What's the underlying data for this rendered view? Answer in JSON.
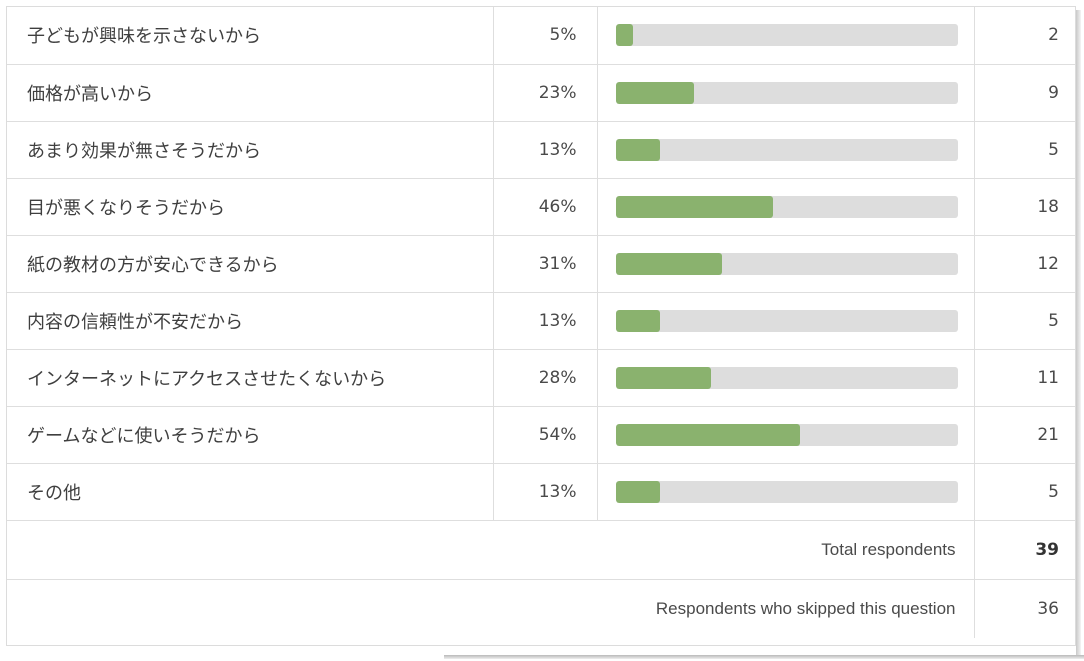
{
  "chart_data": {
    "type": "bar",
    "orientation": "horizontal",
    "categories": [
      "子どもが興味を示さないから",
      "価格が高いから",
      "あまり効果が無さそうだから",
      "目が悪くなりそうだから",
      "紙の教材の方が安心できるから",
      "内容の信頼性が不安だから",
      "インターネットにアクセスさせたくないから",
      "ゲームなどに使いそうだから",
      "その他"
    ],
    "percent_labels": [
      "5%",
      "23%",
      "13%",
      "46%",
      "31%",
      "13%",
      "28%",
      "54%",
      "13%"
    ],
    "percent_values": [
      5,
      23,
      13,
      46,
      31,
      13,
      28,
      54,
      13
    ],
    "count_labels": [
      "2",
      "9",
      "5",
      "18",
      "12",
      "5",
      "11",
      "21",
      "5"
    ],
    "counts": [
      2,
      9,
      5,
      18,
      12,
      5,
      11,
      21,
      5
    ],
    "xlim": [
      0,
      100
    ],
    "bar_color": "#8ab26e",
    "track_color": "#dddddd"
  },
  "summary": {
    "total_label": "Total respondents",
    "total_value": "39",
    "skipped_label": "Respondents who skipped this question",
    "skipped_value": "36"
  }
}
